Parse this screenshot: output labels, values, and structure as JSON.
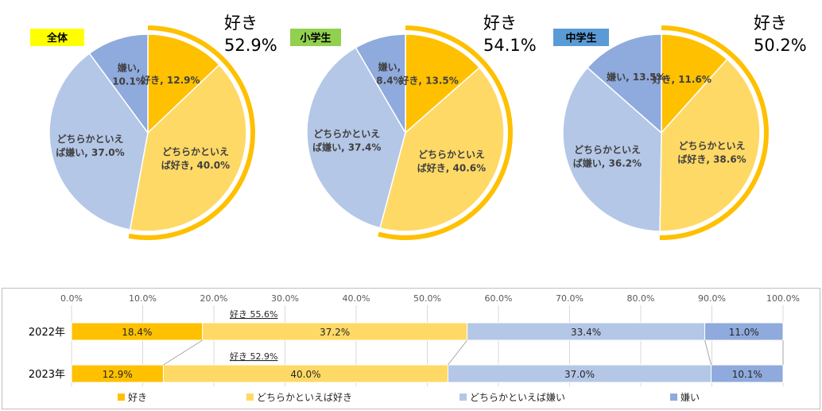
{
  "colors": {
    "like": "#FFC000",
    "somewhat_like": "#FFD966",
    "somewhat_dislike": "#B4C7E7",
    "dislike": "#8FAADC",
    "outline_ring": "#FFC000",
    "badge_all": "#FFFF00",
    "badge_elementary": "#92D050",
    "badge_junior": "#5B9BD5",
    "label_text": "#404040"
  },
  "chart_data": [
    {
      "type": "pie",
      "badge": "全体",
      "total_label": "好き",
      "total_value": "52.9%",
      "slices": [
        {
          "name": "好き",
          "value": 12.9,
          "label": "好き, 12.9%"
        },
        {
          "name": "どちらかといえば好き",
          "value": 40.0,
          "label": "どちらかといえ\nば好き, 40.0%"
        },
        {
          "name": "どちらかといえば嫌い",
          "value": 37.0,
          "label": "どちらかといえ\nば嫌い, 37.0%"
        },
        {
          "name": "嫌い",
          "value": 10.1,
          "label": "嫌い,\n10.1%"
        }
      ]
    },
    {
      "type": "pie",
      "badge": "小学生",
      "total_label": "好き",
      "total_value": "54.1%",
      "slices": [
        {
          "name": "好き",
          "value": 13.5,
          "label": "好き, 13.5%"
        },
        {
          "name": "どちらかといえば好き",
          "value": 40.6,
          "label": "どちらかといえ\nば好き, 40.6%"
        },
        {
          "name": "どちらかといえば嫌い",
          "value": 37.4,
          "label": "どちらかといえ\nば嫌い, 37.4%"
        },
        {
          "name": "嫌い",
          "value": 8.4,
          "label": "嫌い,\n8.4%"
        }
      ]
    },
    {
      "type": "pie",
      "badge": "中学生",
      "total_label": "好き",
      "total_value": "50.2%",
      "slices": [
        {
          "name": "好き",
          "value": 11.6,
          "label": "好き, 11.6%"
        },
        {
          "name": "どちらかといえば好き",
          "value": 38.6,
          "label": "どちらかといえ\nば好き, 38.6%"
        },
        {
          "name": "どちらかといえば嫌い",
          "value": 36.2,
          "label": "どちらかといえ\nば嫌い, 36.2%"
        },
        {
          "name": "嫌い",
          "value": 13.5,
          "label": "嫌い, 13.5%"
        }
      ]
    },
    {
      "type": "bar",
      "orientation": "horizontal",
      "stacked": true,
      "categories": [
        "2022年",
        "2023年"
      ],
      "xlim": [
        0,
        100
      ],
      "xticks": [
        "0.0%",
        "10.0%",
        "20.0%",
        "30.0%",
        "40.0%",
        "50.0%",
        "60.0%",
        "70.0%",
        "80.0%",
        "90.0%",
        "100.0%"
      ],
      "series": [
        {
          "name": "好き",
          "values": [
            18.4,
            12.9
          ],
          "labels": [
            "18.4%",
            "12.9%"
          ]
        },
        {
          "name": "どちらかといえば好き",
          "values": [
            37.2,
            40.0
          ],
          "labels": [
            "37.2%",
            "40.0%"
          ]
        },
        {
          "name": "どちらかといえば嫌い",
          "values": [
            33.4,
            37.0
          ],
          "labels": [
            "33.4%",
            "37.0%"
          ]
        },
        {
          "name": "嫌い",
          "values": [
            11.0,
            10.1
          ],
          "labels": [
            "11.0%",
            "10.1%"
          ]
        }
      ],
      "annotations": [
        "好き 55.6%",
        "好き 52.9%"
      ],
      "legend": [
        "好き",
        "どちらかといえば好き",
        "どちらかといえば嫌い",
        "嫌い"
      ],
      "legend_position": "bottom"
    }
  ]
}
